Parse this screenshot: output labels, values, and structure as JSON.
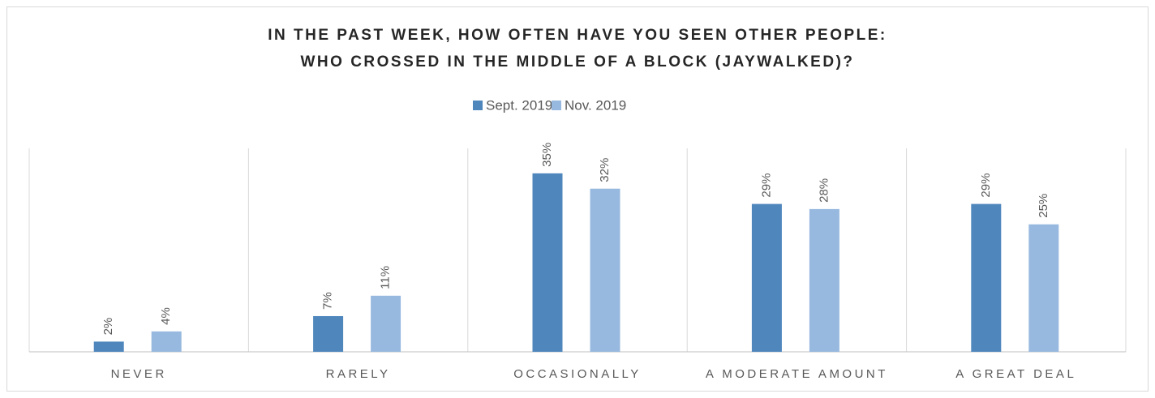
{
  "chart_data": {
    "type": "bar",
    "title": [
      "IN THE PAST WEEK, HOW OFTEN HAVE YOU SEEN OTHER PEOPLE:",
      "WHO CROSSED IN THE MIDDLE OF A BLOCK (JAYWALKED)?"
    ],
    "categories": [
      "NEVER",
      "RARELY",
      "OCCASIONALLY",
      "A MODERATE AMOUNT",
      "A GREAT DEAL"
    ],
    "series": [
      {
        "name": "Sept. 2019",
        "color": "#4f87bd",
        "values": [
          2,
          7,
          35,
          29,
          29
        ],
        "value_labels": [
          "2%",
          "7%",
          "35%",
          "29%",
          "29%"
        ]
      },
      {
        "name": "Nov. 2019",
        "color": "#98b9df",
        "values": [
          4,
          11,
          32,
          28,
          25
        ],
        "value_labels": [
          "4%",
          "11%",
          "32%",
          "28%",
          "25%"
        ]
      }
    ],
    "legend": "top"
  }
}
